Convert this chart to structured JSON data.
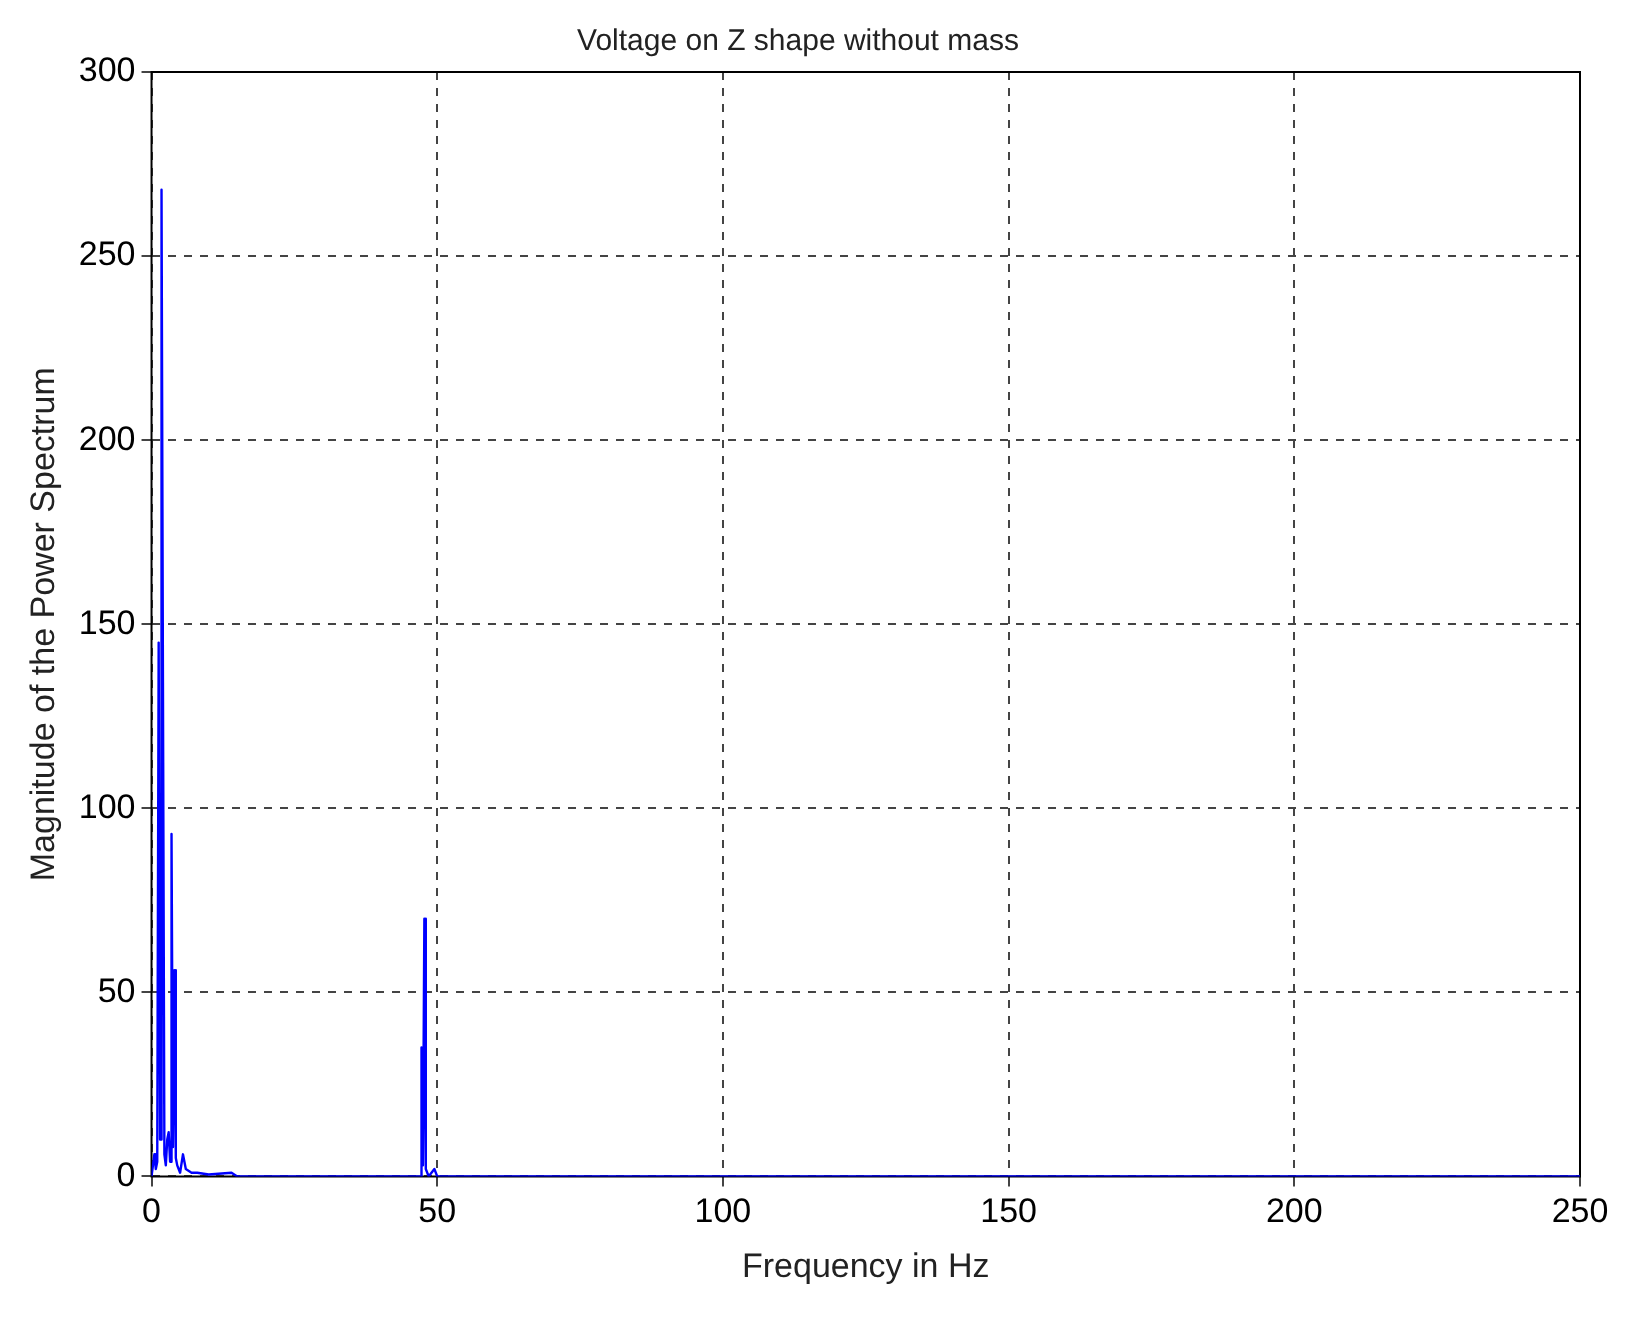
{
  "chart_data": {
    "type": "line",
    "title": "Voltage on Z shape without mass",
    "xlabel": "Frequency in Hz",
    "ylabel": "Magnitude of the Power Spectrum",
    "xlim": [
      0,
      250
    ],
    "xticks": [
      0,
      50,
      100,
      150,
      200,
      250
    ],
    "ylim": [
      0,
      300
    ],
    "yticks": [
      0,
      50,
      100,
      150,
      200,
      250,
      300
    ],
    "grid": true,
    "marker": "none",
    "line_style": "solid",
    "series": [
      {
        "color": "#0000ff",
        "x": [
          0,
          0.25,
          0.5,
          0.75,
          1.0,
          1.25,
          1.5,
          1.75,
          2.0,
          2.25,
          2.5,
          2.75,
          3.0,
          3.25,
          3.5,
          3.75,
          4.0,
          4.25,
          4.5,
          5.0,
          5.5,
          6.0,
          7,
          8,
          10,
          14,
          15,
          20,
          30,
          47,
          47.25,
          47.5,
          47.75,
          48,
          48.5,
          49.5,
          50,
          100,
          250
        ],
        "values": [
          0,
          3,
          6,
          2,
          4,
          145,
          10,
          268,
          134,
          6,
          3,
          10,
          12,
          4,
          93,
          8,
          56,
          5,
          3,
          1,
          6,
          2,
          1,
          1,
          0.5,
          1,
          0,
          0,
          0,
          0,
          35,
          3,
          70,
          2,
          0,
          2,
          0,
          0,
          0
        ]
      }
    ]
  }
}
